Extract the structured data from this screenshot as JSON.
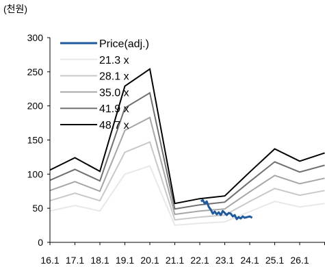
{
  "chart_data": {
    "type": "line",
    "unit_label": "(천원)",
    "x_tick_labels": [
      "16.1",
      "17.1",
      "18.1",
      "19.1",
      "20.1",
      "21.1",
      "22.1",
      "23.1",
      "24.1",
      "25.1",
      "26.1"
    ],
    "ylim": [
      0,
      300
    ],
    "y_ticks": [
      "0",
      "50",
      "100",
      "150",
      "200",
      "250",
      "300"
    ],
    "grid": false,
    "legend_position": "top-left",
    "x_domain": [
      0,
      11
    ],
    "band_x": [
      0,
      1,
      2,
      3,
      4,
      5,
      6,
      7,
      8,
      9,
      10,
      11
    ],
    "series": [
      {
        "name": "Price(adj.)",
        "color": "#1f5a9e",
        "x": [
          6.05,
          6.12,
          6.2,
          6.28,
          6.36,
          6.44,
          6.52,
          6.6,
          6.68,
          6.76,
          6.84,
          6.92,
          7.0,
          7.08,
          7.16,
          7.24,
          7.32,
          7.4,
          7.48,
          7.56,
          7.64,
          7.72,
          7.8,
          7.9,
          8.0,
          8.1
        ],
        "y": [
          60,
          62,
          57,
          60,
          52,
          48,
          42,
          45,
          41,
          44,
          40,
          46,
          43,
          40,
          43,
          42,
          38,
          40,
          34,
          37,
          35,
          38,
          36,
          37,
          38,
          36
        ]
      },
      {
        "name": "21.3 x",
        "color": "#e8e8e8",
        "y": [
          46,
          54,
          46,
          100,
          112,
          25,
          28,
          30,
          45,
          60,
          52,
          57
        ]
      },
      {
        "name": "28.1 x",
        "color": "#c8c8c8",
        "y": [
          61,
          72,
          61,
          132,
          147,
          33,
          37,
          40,
          60,
          79,
          69,
          76
        ]
      },
      {
        "name": "35.0 x",
        "color": "#a6a6a6",
        "y": [
          76,
          89,
          75,
          164,
          183,
          41,
          46,
          49,
          74,
          98,
          86,
          94
        ]
      },
      {
        "name": "41.9 x",
        "color": "#6f6f6f",
        "y": [
          91,
          107,
          90,
          197,
          219,
          49,
          55,
          59,
          89,
          118,
          103,
          113
        ]
      },
      {
        "name": "48.7 x",
        "color": "#000000",
        "y": [
          106,
          124,
          104,
          229,
          254,
          57,
          64,
          68,
          103,
          137,
          119,
          131
        ]
      }
    ]
  }
}
